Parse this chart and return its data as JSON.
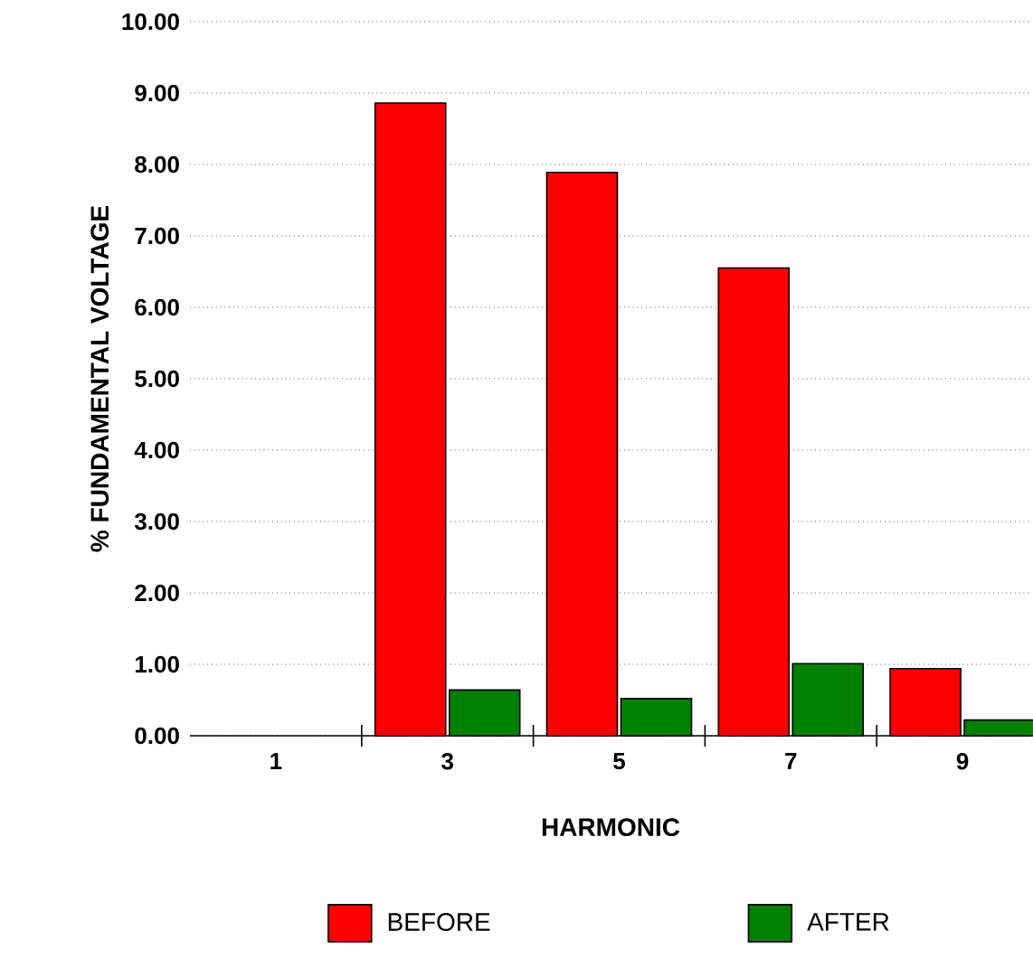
{
  "chart_data": {
    "type": "bar",
    "xlabel": "HARMONIC",
    "ylabel": "% FUNDAMENTAL VOLTAGE",
    "categories": [
      "1",
      "3",
      "5",
      "7",
      "9"
    ],
    "series": [
      {
        "name": "BEFORE",
        "color": "#ff0000",
        "values": [
          null,
          8.86,
          7.89,
          6.55,
          0.94
        ]
      },
      {
        "name": "AFTER",
        "color": "#008000",
        "values": [
          null,
          0.64,
          0.52,
          1.01,
          0.22
        ]
      }
    ],
    "ylim": [
      0,
      10
    ],
    "yticks": [
      {
        "value": 0,
        "label": "0.00"
      },
      {
        "value": 1,
        "label": "1.00"
      },
      {
        "value": 2,
        "label": "2.00"
      },
      {
        "value": 3,
        "label": "3.00"
      },
      {
        "value": 4,
        "label": "4.00"
      },
      {
        "value": 5,
        "label": "5.00"
      },
      {
        "value": 6,
        "label": "6.00"
      },
      {
        "value": 7,
        "label": "7.00"
      },
      {
        "value": 8,
        "label": "8.00"
      },
      {
        "value": 9,
        "label": "9.00"
      },
      {
        "value": 10,
        "label": "10.00"
      }
    ],
    "grid": "y",
    "legend": "bottom"
  }
}
